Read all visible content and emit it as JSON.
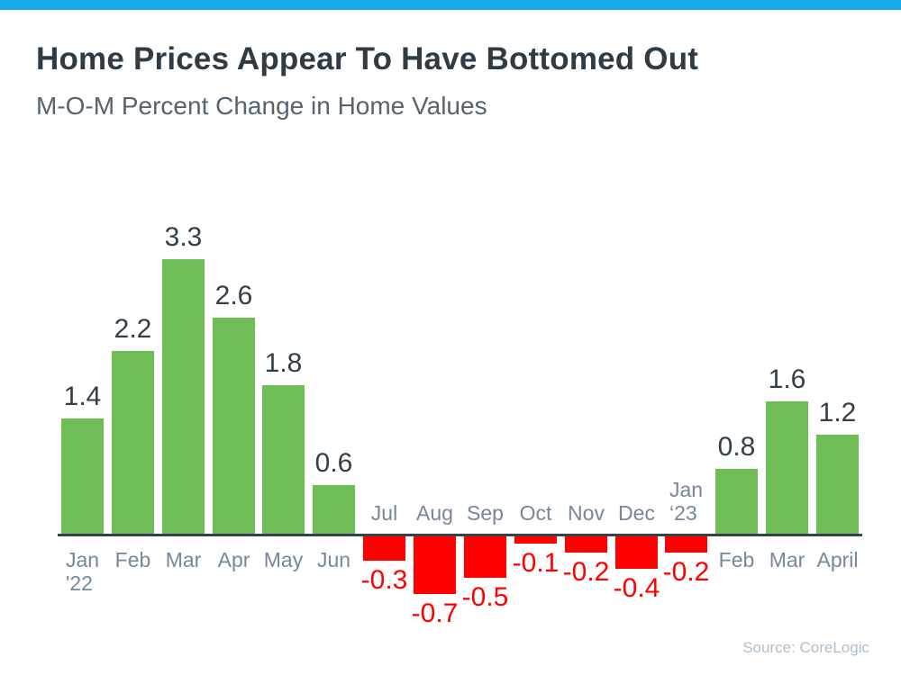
{
  "accent_color": "#18A9EA",
  "header": {
    "title": "Home Prices Appear To Have Bottomed Out",
    "subtitle": "M-O-M Percent Change in Home Values"
  },
  "footer": {
    "source": "Source: CoreLogic"
  },
  "chart_data": {
    "type": "bar",
    "title": "Home Prices Appear To Have Bottomed Out",
    "subtitle": "M-O-M Percent Change in Home Values",
    "categories": [
      "Jan\n'22",
      "Feb",
      "Mar",
      "Apr",
      "May",
      "Jun",
      "Jul",
      "Aug",
      "Sep",
      "Oct",
      "Nov",
      "Dec",
      "Jan\n‘23",
      "Feb",
      "Mar",
      "April"
    ],
    "values": [
      1.4,
      2.2,
      3.3,
      2.6,
      1.8,
      0.6,
      -0.3,
      -0.7,
      -0.5,
      -0.1,
      -0.2,
      -0.4,
      -0.2,
      0.8,
      1.6,
      1.2
    ],
    "data_labels": [
      "1.4",
      "2.2",
      "3.3",
      "2.6",
      "1.8",
      "0.6",
      "-0.3",
      "-0.7",
      "-0.5",
      "-0.1",
      "-0.2",
      "-0.4",
      "-0.2",
      "0.8",
      "1.6",
      "1.2"
    ],
    "xlabel": "",
    "ylabel": "",
    "ylim": [
      -0.9,
      3.6
    ],
    "grid": false,
    "legend": false,
    "colors": {
      "positive_bar": "#6EBE55",
      "negative_bar": "#FF0000",
      "positive_label": "#333f48",
      "negative_label": "#FF0000",
      "axis_line": "#37414b",
      "month_label": "#76879b"
    }
  }
}
